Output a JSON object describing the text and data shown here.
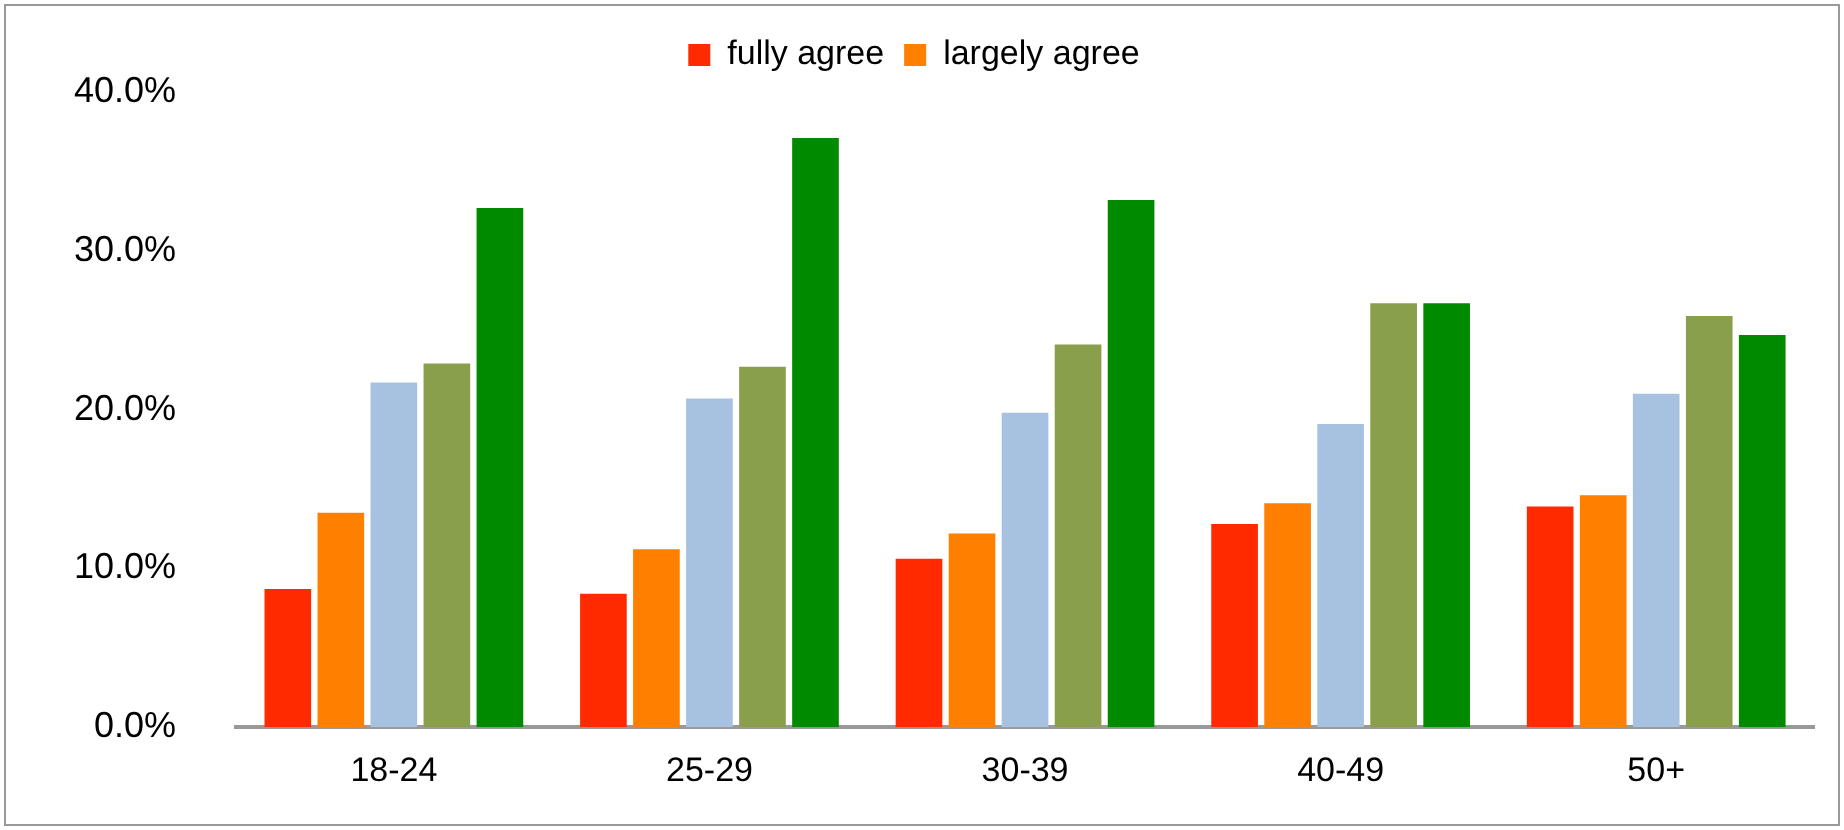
{
  "chart_data": {
    "type": "bar",
    "categories": [
      "18-24",
      "25-29",
      "30-39",
      "40-49",
      "50+"
    ],
    "series": [
      {
        "name": "fully agree",
        "color": "#ff2a00",
        "values": [
          8.7,
          8.4,
          10.6,
          12.8,
          13.9
        ]
      },
      {
        "name": "largely agree",
        "color": "#ff7f00",
        "values": [
          13.5,
          11.2,
          12.2,
          14.1,
          14.6
        ]
      },
      {
        "color": "#a7c1e0",
        "values": [
          21.7,
          20.7,
          19.8,
          19.1,
          21.0
        ]
      },
      {
        "color": "#8a9f4c",
        "values": [
          22.9,
          22.7,
          24.1,
          26.7,
          25.9
        ]
      },
      {
        "color": "#008a00",
        "values": [
          32.7,
          37.1,
          33.2,
          26.7,
          24.7
        ]
      }
    ],
    "ylim": [
      0,
      40
    ],
    "yticks": [
      {
        "value": 0,
        "label": "0.0%"
      },
      {
        "value": 10,
        "label": "10.0%"
      },
      {
        "value": 20,
        "label": "20.0%"
      },
      {
        "value": 30,
        "label": "30.0%"
      },
      {
        "value": 40,
        "label": "40.0%"
      }
    ],
    "grid": false,
    "legend": "top"
  }
}
